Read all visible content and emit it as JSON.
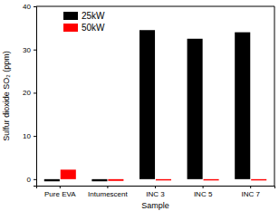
{
  "chart_data": {
    "type": "bar",
    "x_label": "Sample",
    "y_label": "Sulfur dioxide SO₂ (ppm)",
    "categories": [
      "Pure EVA",
      "Intumescent",
      "INC 3",
      "INC 5",
      "INC 7"
    ],
    "series": [
      {
        "name": "25kW",
        "color": "#000000",
        "values": [
          -0.5,
          -0.5,
          34.5,
          32.5,
          34.0
        ]
      },
      {
        "name": "50kW",
        "color": "#ff0000",
        "values": [
          2.2,
          -0.4,
          -0.3,
          -0.3,
          -0.3
        ]
      }
    ],
    "ylim": [
      -1.5,
      40
    ],
    "yticks": [
      0,
      10,
      20,
      30,
      40
    ],
    "grid": false,
    "legend": "upper left"
  }
}
